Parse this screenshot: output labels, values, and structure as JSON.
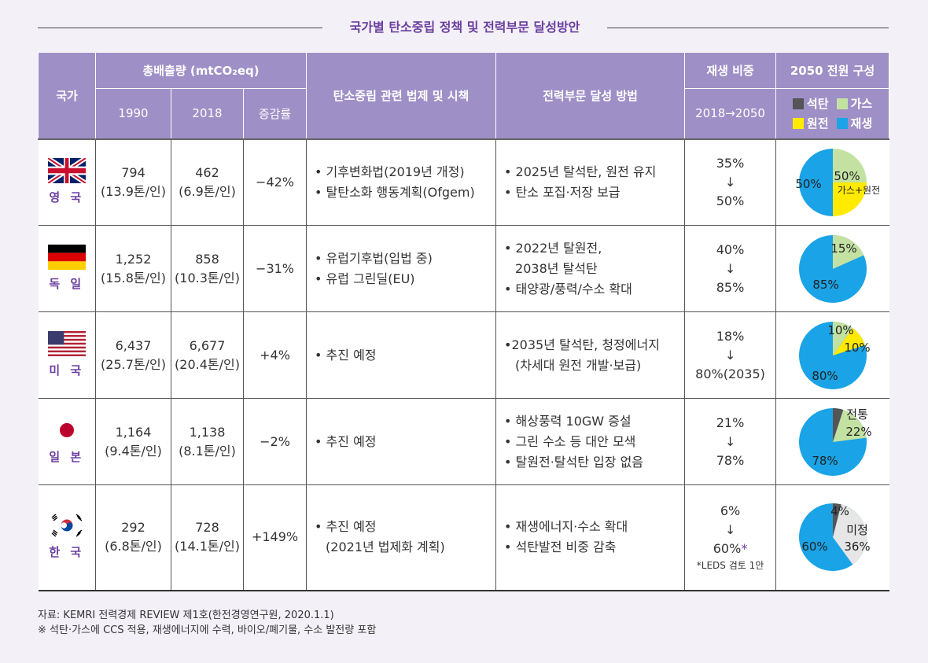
{
  "title": "국가별 탄소중립 정책 및 전력부문 달성방안",
  "headers": {
    "country": "국가",
    "emissions": "총배출량 (mtCO₂eq)",
    "y1990": "1990",
    "y2018": "2018",
    "change": "증감률",
    "law": "탄소중립 관련 법제 및 시책",
    "method": "전력부문 달성 방법",
    "renew": "재생 비중",
    "renew_sub": "2018→2050",
    "mix": "2050 전원 구성"
  },
  "legend": {
    "coal": "석탄",
    "gas": "가스",
    "nuclear": "원전",
    "renew": "재생",
    "colors": {
      "coal": "#555555",
      "gas": "#c3e2a2",
      "nuclear": "#ffea00",
      "renew": "#1aa3e6",
      "undecided": "#e6e6e6"
    }
  },
  "rows": [
    {
      "name": "영 국",
      "flag": "uk-flag",
      "e1990": "794",
      "e1990_pc": "(13.9톤/인)",
      "e2018": "462",
      "e2018_pc": "(6.9톤/인)",
      "change": "−42%",
      "law": [
        "• 기후변화법(2019년 개정)",
        "• 탈탄소화 행동계획(Ofgem)"
      ],
      "method": [
        "• 2025년 탈석탄, 원전 유지",
        "• 탄소 포집·저장 보급"
      ],
      "renew_from": "35%",
      "arrow": "↓",
      "renew_to": "50%",
      "pie_labels": [
        "50%",
        "50%",
        "가스+원전"
      ],
      "pie_values": {
        "renew": 50,
        "gas_nuclear": 50
      }
    },
    {
      "name": "독 일",
      "flag": "germany-flag",
      "e1990": "1,252",
      "e1990_pc": "(15.8톤/인)",
      "e2018": "858",
      "e2018_pc": "(10.3톤/인)",
      "change": "−31%",
      "law": [
        "• 유럽기후법(입법 중)",
        "• 유럽 그린딜(EU)"
      ],
      "method": [
        "• 2022년 탈원전,",
        "2038년 탈석탄",
        "• 태양광/풍력/수소 확대"
      ],
      "renew_from": "40%",
      "arrow": "↓",
      "renew_to": "85%",
      "pie_labels": [
        "15%",
        "85%"
      ],
      "pie_values": {
        "gas": 15,
        "renew": 85
      }
    },
    {
      "name": "미 국",
      "flag": "usa-flag",
      "e1990": "6,437",
      "e1990_pc": "(25.7톤/인)",
      "e2018": "6,677",
      "e2018_pc": "(20.4톤/인)",
      "change": "+4%",
      "law": [
        "• 추진 예정"
      ],
      "method": [
        "•2035년 탈석탄, 청정에너지",
        "(차세대 원전 개발·보급)"
      ],
      "renew_from": "18%",
      "arrow": "↓",
      "renew_to": "80%(2035)",
      "pie_labels": [
        "10%",
        "10%",
        "80%"
      ],
      "pie_values": {
        "gas": 10,
        "nuclear": 10,
        "renew": 80
      }
    },
    {
      "name": "일 본",
      "flag": "japan-flag",
      "e1990": "1,164",
      "e1990_pc": "(9.4톤/인)",
      "e2018": "1,138",
      "e2018_pc": "(8.1톤/인)",
      "change": "−2%",
      "law": [
        "• 추진 예정"
      ],
      "method": [
        "• 해상풍력 10GW 증설",
        "• 그린 수소 등 대안 모색",
        "• 탈원전·탈석탄 입장 없음"
      ],
      "renew_from": "21%",
      "arrow": "↓",
      "renew_to": "78%",
      "pie_labels": [
        "전통",
        "22%",
        "78%"
      ],
      "pie_values": {
        "coal": 5,
        "gas": 17,
        "renew": 78
      }
    },
    {
      "name": "한 국",
      "flag": "korea-flag",
      "e1990": "292",
      "e1990_pc": "(6.8톤/인)",
      "e2018": "728",
      "e2018_pc": "(14.1톤/인)",
      "change": "+149%",
      "law": [
        "• 추진 예정",
        "(2021년 법제화 계획)"
      ],
      "method": [
        "• 재생에너지·수소 확대",
        "• 석탄발전 비중 감축"
      ],
      "renew_from": "6%",
      "arrow": "↓",
      "renew_to": "60%",
      "renew_star": "*",
      "leds_note": "*LEDS 검토 1안",
      "pie_labels": [
        "4%",
        "미정",
        "36%",
        "60%"
      ],
      "pie_values": {
        "coal": 4,
        "undecided": 36,
        "renew": 60
      }
    }
  ],
  "footer": {
    "source": "자료: KEMRI 전력경제 REVIEW 제1호(한전경영연구원, 2020.1.1)",
    "note": "※ 석탄·가스에 CCS 적용, 재생에너지에 수력, 바이오/폐기물, 수소 발전량 포함"
  }
}
